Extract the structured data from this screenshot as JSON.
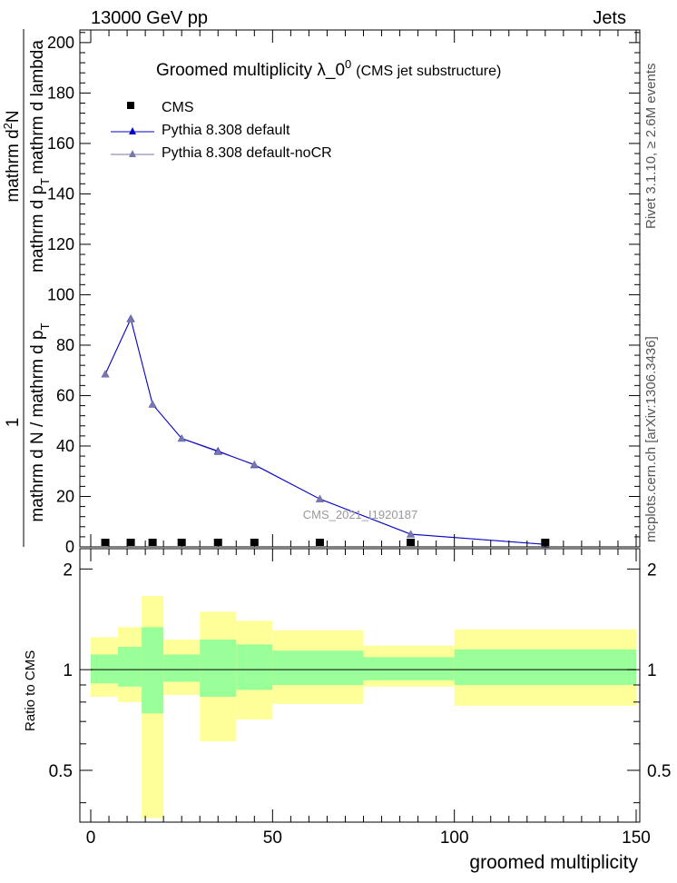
{
  "header": {
    "left": "13000 GeV pp",
    "right": "Jets"
  },
  "side_labels": {
    "rivet": "Rivet 3.1.10, ≥ 2.6M events",
    "mcplots": "mcplots.cern.ch [arXiv:1306.3436]"
  },
  "colors": {
    "cms": "#000000",
    "pythia_default": "#0000cc",
    "pythia_nocr": "#7777aa",
    "band_inner": "#99ff99",
    "band_outer": "#ffff99"
  },
  "chart_data": [
    {
      "type": "line",
      "title_main": "Groomed multiplicity  λ_0",
      "title_sup": "0",
      "title_suffix": "(CMS jet substructure)",
      "ylabel_top": "1",
      "ylabel_den": "mathrm d N / mathrm d p",
      "ylabel_den_sub": "T",
      "ylabel_num_a": "mathrm d",
      "ylabel_num_sup": "2",
      "ylabel_num_b": "N",
      "ylabel_num_c": "mathrm d p",
      "ylabel_num_c_sub": "T",
      "ylabel_num_d": "mathrm d lambda",
      "xlim": [
        -3,
        151
      ],
      "ylim": [
        0,
        205
      ],
      "yticks": [
        0,
        20,
        40,
        60,
        80,
        100,
        120,
        140,
        160,
        180,
        200
      ],
      "watermark": "CMS_2021_I1920187",
      "legend": [
        "CMS",
        "Pythia 8.308 default",
        "Pythia 8.308 default-noCR"
      ],
      "series": [
        {
          "name": "CMS",
          "x": [
            4,
            11,
            17,
            25,
            35,
            45,
            63,
            88,
            125
          ],
          "y": [
            0.6,
            0.8,
            0.7,
            0.6,
            0.6,
            0.5,
            0.4,
            0.3,
            0.2
          ]
        },
        {
          "name": "Pythia 8.308 default",
          "x": [
            4,
            11,
            17,
            25,
            35,
            45,
            63,
            88,
            125
          ],
          "y": [
            68.5,
            90.5,
            56.5,
            43,
            38,
            32.5,
            19,
            5,
            1
          ]
        },
        {
          "name": "Pythia 8.308 default-noCR",
          "x": [
            4,
            11,
            17,
            25,
            35,
            45,
            63,
            88,
            125
          ],
          "y": [
            68.5,
            90.3,
            56.6,
            43,
            37.7,
            32.7,
            19,
            5.1,
            1
          ]
        }
      ]
    },
    {
      "type": "area",
      "ylabel": "Ratio to CMS",
      "xlabel": "groomed multiplicity",
      "xlim": [
        -3,
        151
      ],
      "ylim": [
        0.35,
        2.3
      ],
      "log_y": true,
      "xticks": [
        0,
        50,
        100,
        150
      ],
      "yticks": [
        0.5,
        1,
        2
      ],
      "bands": [
        {
          "x0": 0,
          "x1": 7.5,
          "inner_lo": 0.91,
          "inner_hi": 1.11,
          "outer_lo": 0.83,
          "outer_hi": 1.25
        },
        {
          "x0": 7.5,
          "x1": 14,
          "inner_lo": 0.89,
          "inner_hi": 1.17,
          "outer_lo": 0.8,
          "outer_hi": 1.34
        },
        {
          "x0": 14,
          "x1": 20,
          "inner_lo": 0.74,
          "inner_hi": 1.34,
          "outer_lo": 0.36,
          "outer_hi": 1.66
        },
        {
          "x0": 20,
          "x1": 30,
          "inner_lo": 0.92,
          "inner_hi": 1.11,
          "outer_lo": 0.84,
          "outer_hi": 1.23
        },
        {
          "x0": 30,
          "x1": 40,
          "inner_lo": 0.83,
          "inner_hi": 1.23,
          "outer_lo": 0.61,
          "outer_hi": 1.49
        },
        {
          "x0": 40,
          "x1": 50,
          "inner_lo": 0.87,
          "inner_hi": 1.19,
          "outer_lo": 0.71,
          "outer_hi": 1.4
        },
        {
          "x0": 50,
          "x1": 75,
          "inner_lo": 0.9,
          "inner_hi": 1.14,
          "outer_lo": 0.79,
          "outer_hi": 1.31
        },
        {
          "x0": 75,
          "x1": 100,
          "inner_lo": 0.93,
          "inner_hi": 1.09,
          "outer_lo": 0.89,
          "outer_hi": 1.18
        },
        {
          "x0": 100,
          "x1": 150,
          "inner_lo": 0.9,
          "inner_hi": 1.15,
          "outer_lo": 0.78,
          "outer_hi": 1.32
        }
      ],
      "series": [
        {
          "name": "Pythia 8.308 default",
          "x": [
            0,
            150
          ],
          "y": [
            1.0,
            1.0
          ]
        }
      ]
    }
  ]
}
